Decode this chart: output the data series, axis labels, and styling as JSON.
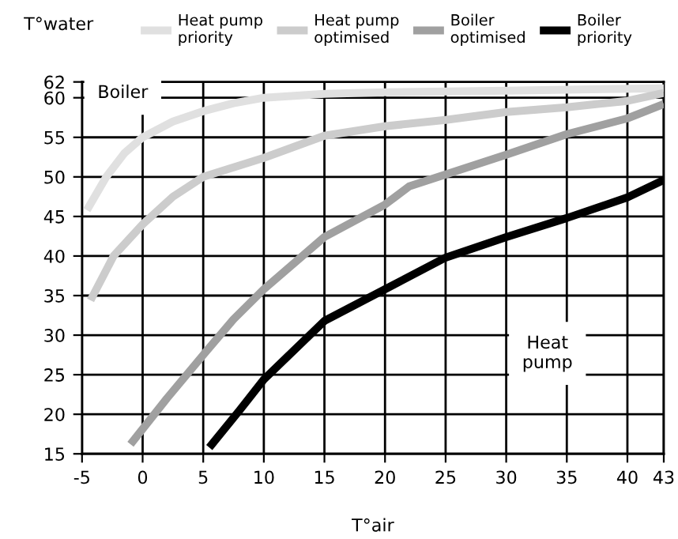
{
  "chart_data": {
    "type": "line",
    "xlabel": "T°air",
    "ylabel": "T°water",
    "xlim": [
      -5,
      43
    ],
    "xticks": [
      -5,
      0,
      5,
      10,
      15,
      20,
      25,
      30,
      35,
      40,
      43
    ],
    "ylim": [
      15,
      62
    ],
    "yticks": [
      15,
      20,
      25,
      30,
      35,
      40,
      45,
      50,
      55,
      60,
      62
    ],
    "grid": true,
    "legend": "top",
    "marker": "none",
    "line_style": "solid",
    "annotations": [
      "Boiler",
      "Heat\npump"
    ],
    "series": [
      {
        "name": "Heat pump\npriority",
        "color": "#e0e0e0",
        "x": [
          -4.6,
          -3,
          -1.5,
          0,
          2.5,
          5,
          7.5,
          10,
          15,
          20,
          30,
          43
        ],
        "values": [
          45.8,
          50,
          53,
          55,
          57,
          58.3,
          59.3,
          60,
          60.5,
          60.7,
          60.9,
          61.2
        ]
      },
      {
        "name": "Heat pump\noptimised",
        "color": "#cccccc",
        "x": [
          -4.3,
          -2.4,
          0,
          2.5,
          5,
          10,
          15,
          20,
          25,
          30,
          35,
          40,
          43
        ],
        "values": [
          34.4,
          40,
          44,
          47.5,
          50,
          52.4,
          55.2,
          56.4,
          57.2,
          58.2,
          58.8,
          59.6,
          60.6
        ]
      },
      {
        "name": "Boiler\noptimised",
        "color": "#a0a0a0",
        "x": [
          -1,
          2,
          5,
          7.5,
          10,
          15,
          20,
          22,
          30,
          35,
          40,
          43
        ],
        "values": [
          16.2,
          22,
          27.5,
          32,
          35.8,
          42.4,
          46.5,
          48.8,
          52.8,
          55.4,
          57.4,
          59.2
        ]
      },
      {
        "name": "Boiler\npriority",
        "color": "#000000",
        "x": [
          5.5,
          8,
          10,
          15,
          20,
          25,
          30,
          35,
          40,
          43
        ],
        "values": [
          15.8,
          20.5,
          24.4,
          31.8,
          35.8,
          39.8,
          42.4,
          44.8,
          47.4,
          49.6
        ]
      }
    ]
  }
}
